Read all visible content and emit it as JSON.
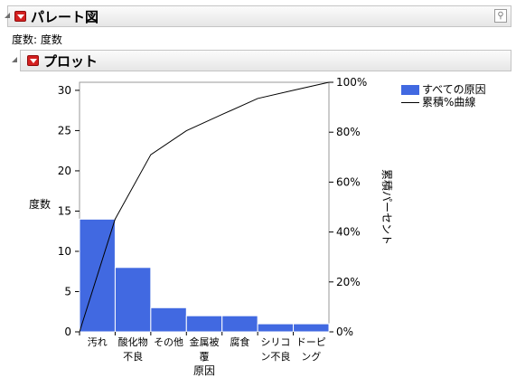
{
  "report": {
    "title": "パレート図",
    "frequency_label": "度数: 度数"
  },
  "plot_section": {
    "title": "プロット"
  },
  "colors": {
    "bar": "#4169e1",
    "header_button": "#d42020"
  },
  "icons": {
    "disclosure": "triangle-icon",
    "menu": "red-triangle-menu-icon",
    "pin": "pin-icon"
  },
  "chart_data": {
    "type": "bar",
    "categories": [
      [
        "汚れ"
      ],
      [
        "酸化物",
        "不良"
      ],
      [
        "その他"
      ],
      [
        "金属被",
        "覆"
      ],
      [
        "腐食"
      ],
      [
        "シリコ",
        "ン不良"
      ],
      [
        "ドーピ",
        "ング"
      ]
    ],
    "series": [
      {
        "name": "すべての原因",
        "values": [
          14,
          8,
          3,
          2,
          2,
          1,
          1
        ]
      }
    ],
    "cumulative_line": {
      "name": "累積%曲線",
      "values": [
        45.2,
        71.0,
        80.6,
        87.1,
        93.5,
        96.8,
        100
      ]
    },
    "xlabel": "原因",
    "ylabel": "度数",
    "y2label": "累積パーセント",
    "ylim": [
      0,
      31
    ],
    "yticks": [
      0,
      5,
      10,
      15,
      20,
      25,
      30
    ],
    "y2lim": [
      0,
      100
    ],
    "y2ticks": [
      "0%",
      "20%",
      "40%",
      "60%",
      "80%",
      "100%"
    ],
    "legend_position": "right"
  }
}
